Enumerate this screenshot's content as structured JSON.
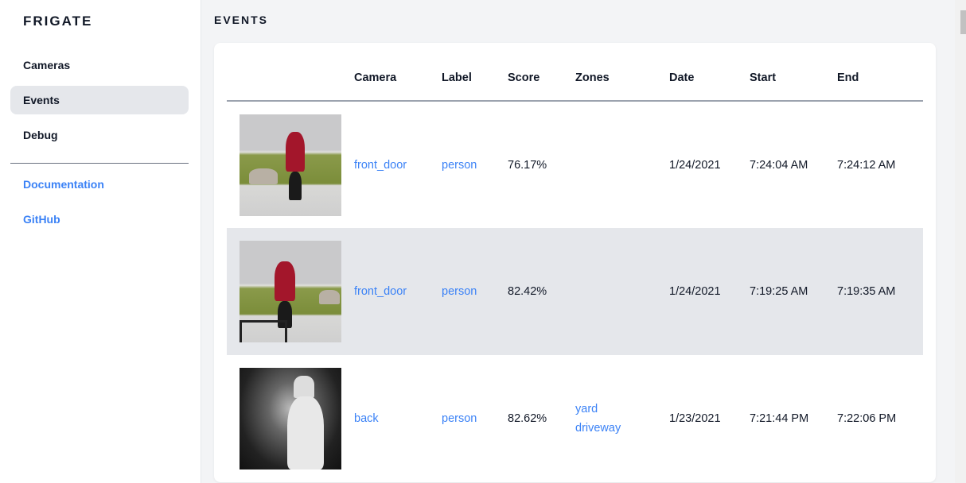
{
  "sidebar": {
    "brand": "FRIGATE",
    "items": [
      {
        "label": "Cameras"
      },
      {
        "label": "Events",
        "active": true
      },
      {
        "label": "Debug"
      }
    ],
    "links": [
      {
        "label": "Documentation"
      },
      {
        "label": "GitHub"
      }
    ]
  },
  "page": {
    "title": "EVENTS"
  },
  "table": {
    "headers": [
      "Camera",
      "Label",
      "Score",
      "Zones",
      "Date",
      "Start",
      "End"
    ],
    "rows": [
      {
        "camera": "front_door",
        "label": "person",
        "score": "76.17%",
        "zones": [
          "",
          ""
        ],
        "date": "1/24/2021",
        "start": "7:24:04 AM",
        "end": "7:24:12 AM"
      },
      {
        "camera": "front_door",
        "label": "person",
        "score": "82.42%",
        "zones": [
          "",
          ""
        ],
        "date": "1/24/2021",
        "start": "7:19:25 AM",
        "end": "7:19:35 AM"
      },
      {
        "camera": "back",
        "label": "person",
        "score": "82.62%",
        "zones": [
          "yard",
          "driveway"
        ],
        "date": "1/23/2021",
        "start": "7:21:44 PM",
        "end": "7:22:06 PM"
      }
    ]
  },
  "colors": {
    "accent": "#3b82f6",
    "active_bg": "#e5e7eb",
    "page_bg": "#f3f4f6"
  }
}
